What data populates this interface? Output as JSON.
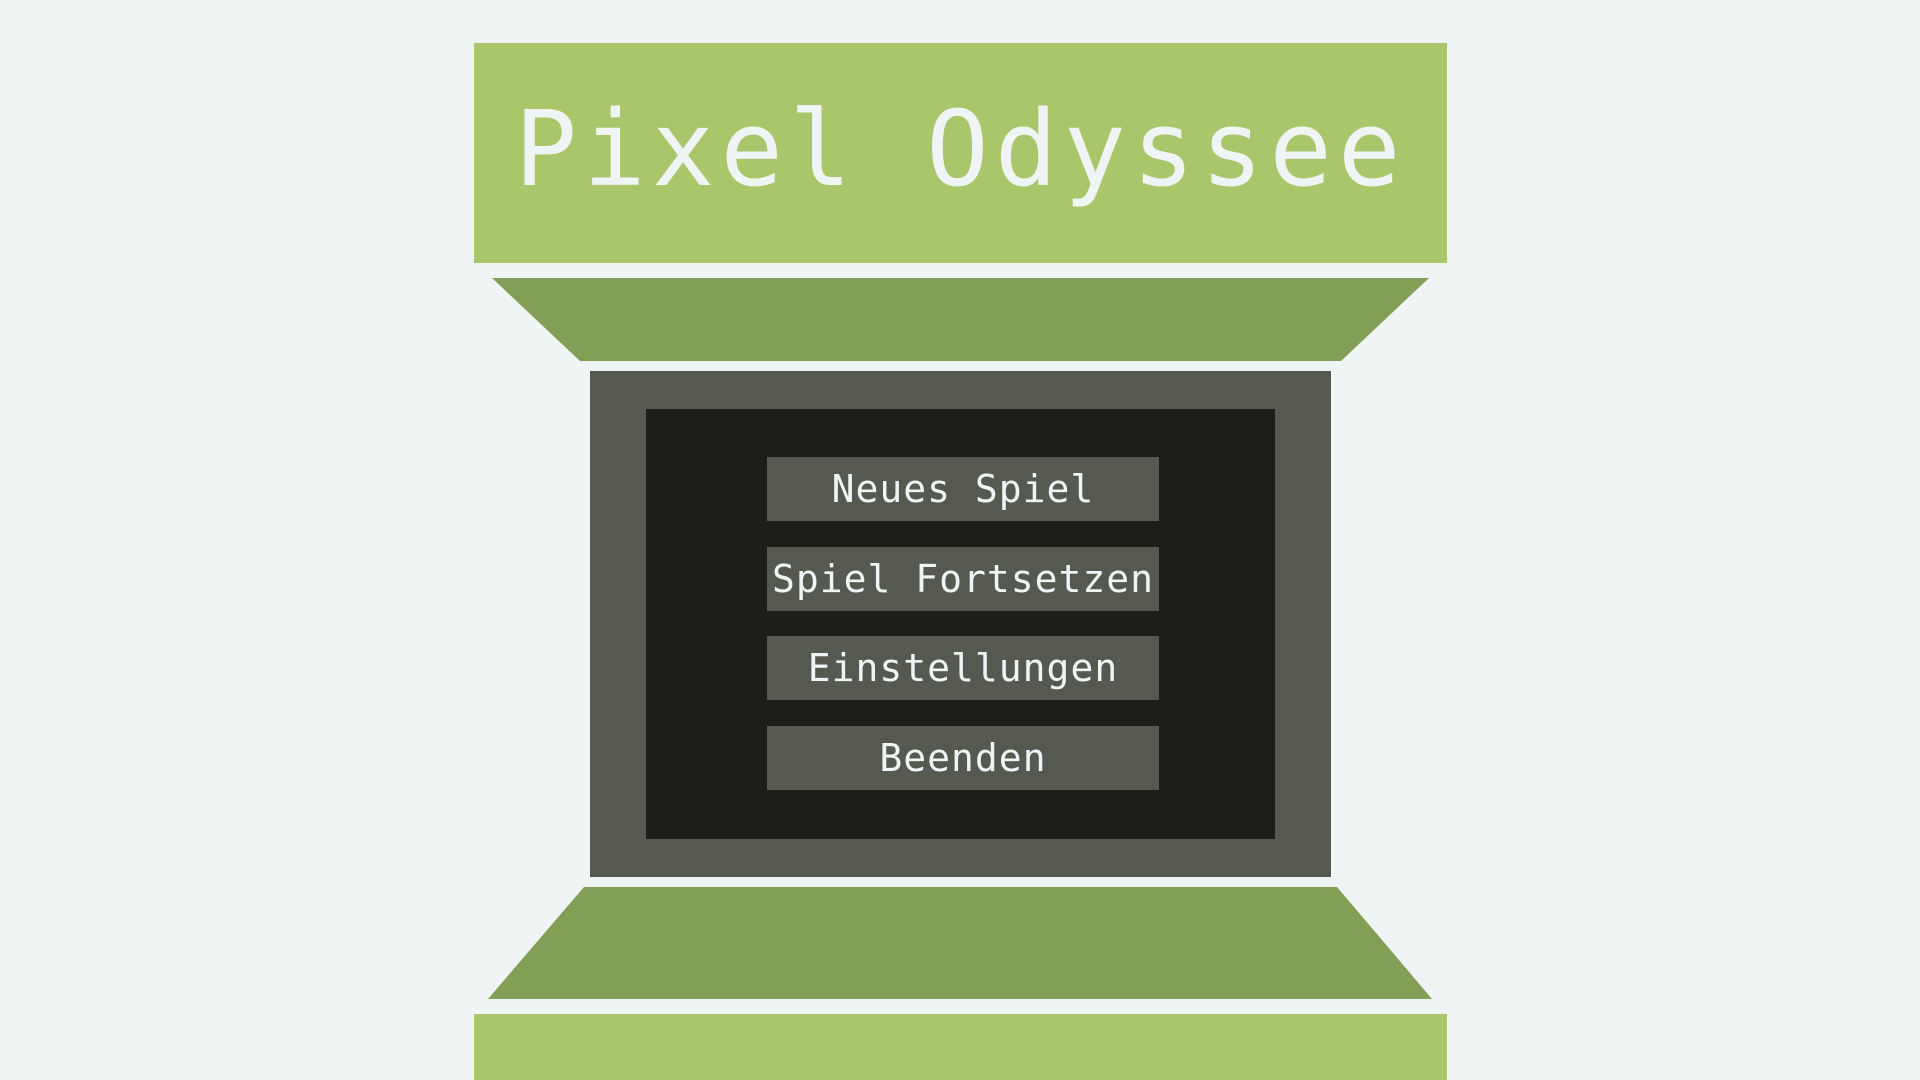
{
  "game": {
    "title": "Pixel Odyssee"
  },
  "menu": {
    "items": [
      {
        "label": "Neues Spiel"
      },
      {
        "label": "Spiel Fortsetzen"
      },
      {
        "label": "Einstellungen"
      },
      {
        "label": "Beenden"
      }
    ]
  },
  "colors": {
    "background": "#eff5f4",
    "banner": "#a9c76a",
    "trapezoid": "#839f55",
    "cabinet": "#55594f",
    "screen": "#1c1e19",
    "text": "#eff5f4"
  }
}
